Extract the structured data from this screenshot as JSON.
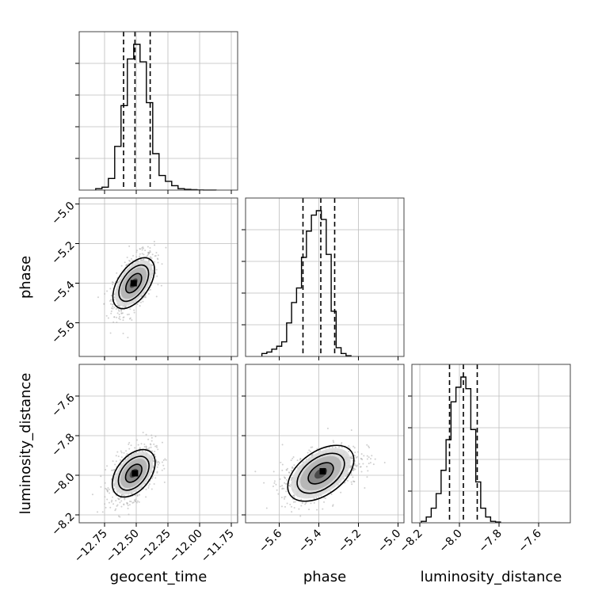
{
  "chart_data": {
    "type": "corner",
    "params": [
      {
        "label": "geocent_time",
        "range": [
          -12.95,
          -11.7
        ],
        "ticks": [
          "-12.75",
          "-12.50",
          "-12.25",
          "-12.00",
          "-11.75"
        ],
        "tick_values": [
          -12.75,
          -12.5,
          -12.25,
          -12.0,
          -11.75
        ],
        "quantiles": [
          -12.6,
          -12.51,
          -12.39
        ],
        "hist_bin_width": 0.05,
        "hist": [
          0.01,
          0.02,
          0.08,
          0.3,
          0.58,
          0.9,
          1.0,
          0.88,
          0.6,
          0.25,
          0.1,
          0.06,
          0.03,
          0.01,
          0.005,
          0.003,
          0.001,
          0.0005,
          0.0002
        ]
      },
      {
        "label": "phase",
        "range": [
          -5.77,
          -4.97
        ],
        "ticks": [
          "-5.6",
          "-5.4",
          "-5.2",
          "-5.0"
        ],
        "tick_values": [
          -5.6,
          -5.4,
          -5.2,
          -5.0
        ],
        "quantiles": [
          -5.48,
          -5.39,
          -5.32
        ],
        "hist_bin_width": 0.025,
        "hist": [
          0.02,
          0.03,
          0.05,
          0.07,
          0.1,
          0.23,
          0.37,
          0.47,
          0.68,
          0.86,
          0.97,
          1.0,
          0.94,
          0.7,
          0.31,
          0.06,
          0.02,
          0.005
        ]
      },
      {
        "label": "luminosity_distance",
        "range": [
          -8.24,
          -7.44
        ],
        "ticks": [
          "-8.2",
          "-8.0",
          "-7.8",
          "-7.6"
        ],
        "tick_values": [
          -8.2,
          -8.0,
          -7.8,
          -7.6
        ],
        "quantiles": [
          -8.05,
          -7.98,
          -7.91
        ],
        "hist_bin_width": 0.025,
        "hist": [
          0.01,
          0.04,
          0.1,
          0.2,
          0.36,
          0.57,
          0.83,
          0.93,
          1.0,
          0.92,
          0.64,
          0.28,
          0.1,
          0.04,
          0.01,
          0.005
        ]
      }
    ],
    "ylabels": [
      "phase",
      "luminosity_distance"
    ],
    "contours": [
      {
        "row": 1,
        "col": 0,
        "center": [
          -12.52,
          -5.4
        ],
        "sigma": [
          0.07,
          0.065
        ],
        "rho": 0.55,
        "peak": [
          -12.52,
          -5.4
        ]
      },
      {
        "row": 2,
        "col": 0,
        "center": [
          -12.52,
          -7.99
        ],
        "sigma": [
          0.075,
          0.06
        ],
        "rho": 0.45,
        "peak": [
          -12.51,
          -7.99
        ]
      },
      {
        "row": 2,
        "col": 1,
        "center": [
          -5.39,
          -7.99
        ],
        "sigma": [
          0.085,
          0.06
        ],
        "rho": 0.5,
        "peak": [
          -5.38,
          -7.98
        ]
      }
    ],
    "contour_levels_sigma": [
      0.8,
      1.5,
      2.1
    ],
    "grid": true,
    "colors": {
      "contour": "#000000",
      "quantile": "#000000",
      "scatter": "#b0b0b0",
      "grid": "#bdbdbd"
    }
  }
}
